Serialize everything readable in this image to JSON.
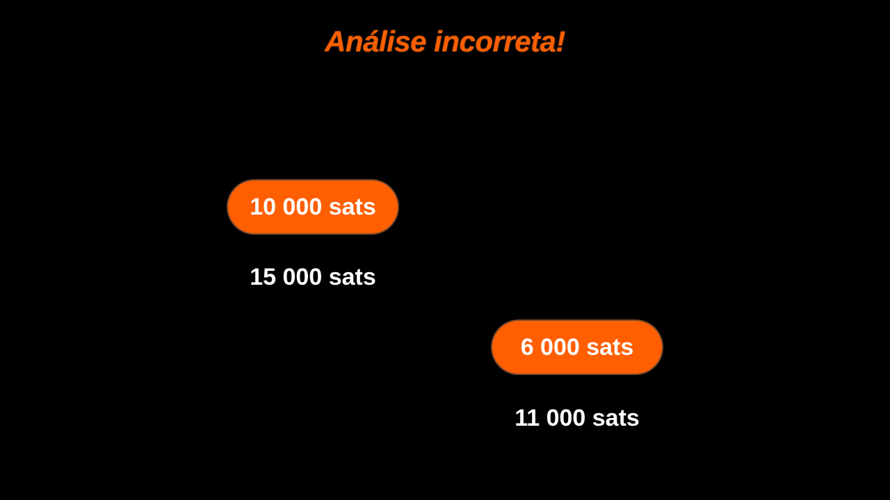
{
  "title": "Análise incorreta!",
  "colors": {
    "background": "#000000",
    "accent": "#ff5f00",
    "text": "#ffffff"
  },
  "amounts": [
    {
      "label": "10 000 sats",
      "highlighted": true
    },
    {
      "label": "15 000 sats",
      "highlighted": false
    },
    {
      "label": "6 000 sats",
      "highlighted": true
    },
    {
      "label": "11 000 sats",
      "highlighted": false
    }
  ]
}
